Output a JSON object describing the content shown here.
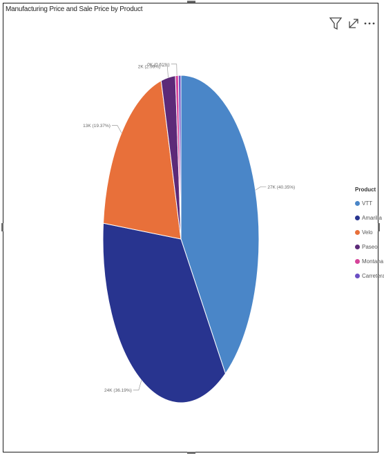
{
  "chart_data": {
    "type": "pie",
    "title": "Manufacturing Price and Sale Price by Product",
    "legend_title": "Product",
    "legend_position": "right",
    "slices": [
      {
        "name": "VTT",
        "value": 27,
        "percent": 40.35,
        "label": "27K (40.35%)",
        "color": "#4a86c8"
      },
      {
        "name": "Amarilla",
        "value": 24,
        "percent": 36.19,
        "label": "24K (36.19%)",
        "color": "#28348f"
      },
      {
        "name": "Velo",
        "value": 13,
        "percent": 19.37,
        "label": "13K (19.37%)",
        "color": "#e8703a"
      },
      {
        "name": "Paseo",
        "value": 2,
        "percent": 2.96,
        "label": "2K (2.96%)",
        "color": "#5c2a78"
      },
      {
        "name": "Montana",
        "value": 0,
        "percent": 0.61,
        "label": "0K (0.61%)",
        "color": "#d6449a"
      },
      {
        "name": "Carretera",
        "value": 0,
        "percent": 0.52,
        "label": "",
        "color": "#6b4fc4"
      }
    ]
  },
  "toolbar": {
    "icons": [
      "filter-icon",
      "focus-mode-icon",
      "more-options-icon"
    ]
  }
}
